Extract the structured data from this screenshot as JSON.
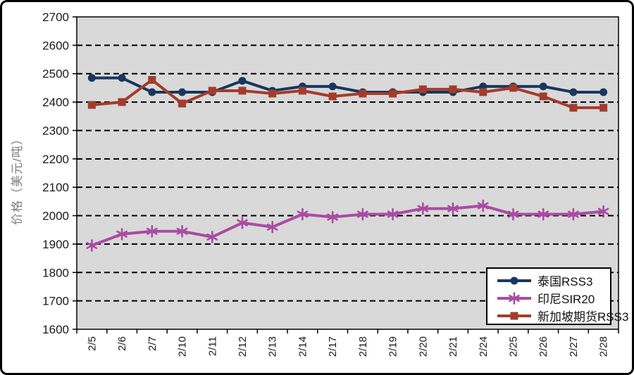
{
  "figure": {
    "background": "#ffffff",
    "border_color": "#000000"
  },
  "chart_data": {
    "type": "line",
    "title": "",
    "xlabel": "",
    "ylabel": "价格（美元/吨）",
    "ylim": [
      1600,
      2700
    ],
    "ytick_step": 100,
    "yticks": [
      2700,
      2600,
      2500,
      2400,
      2300,
      2200,
      2100,
      2000,
      1900,
      1800,
      1700,
      1600
    ],
    "grid": "horizontal-dashed",
    "grid_color": "#000000",
    "plot_background": "#d9d9d9",
    "legend_position": "bottom-right",
    "categories": [
      "2/5",
      "2/6",
      "2/7",
      "2/10",
      "2/11",
      "2/12",
      "2/13",
      "2/14",
      "2/17",
      "2/18",
      "2/19",
      "2/20",
      "2/21",
      "2/24",
      "2/25",
      "2/26",
      "2/27",
      "2/28"
    ],
    "series": [
      {
        "name": "泰国RSS3",
        "color": "#17375e",
        "marker": "circle",
        "values": [
          2485,
          2485,
          2435,
          2435,
          2435,
          2475,
          2440,
          2455,
          2455,
          2435,
          2435,
          2435,
          2435,
          2455,
          2455,
          2455,
          2435,
          2435
        ]
      },
      {
        "name": "印尼SIR20",
        "color": "#aa4ba3",
        "marker": "star",
        "values": [
          1895,
          1935,
          1945,
          1945,
          1925,
          1975,
          1960,
          2005,
          1995,
          2005,
          2005,
          2025,
          2025,
          2035,
          2005,
          2005,
          2005,
          2015
        ]
      },
      {
        "name": "新加坡期货RSS3",
        "color": "#a33c2c",
        "marker": "square",
        "values": [
          2390,
          2400,
          2478,
          2395,
          2440,
          2440,
          2430,
          2440,
          2420,
          2430,
          2430,
          2445,
          2445,
          2435,
          2450,
          2420,
          2380,
          2380
        ]
      }
    ]
  }
}
